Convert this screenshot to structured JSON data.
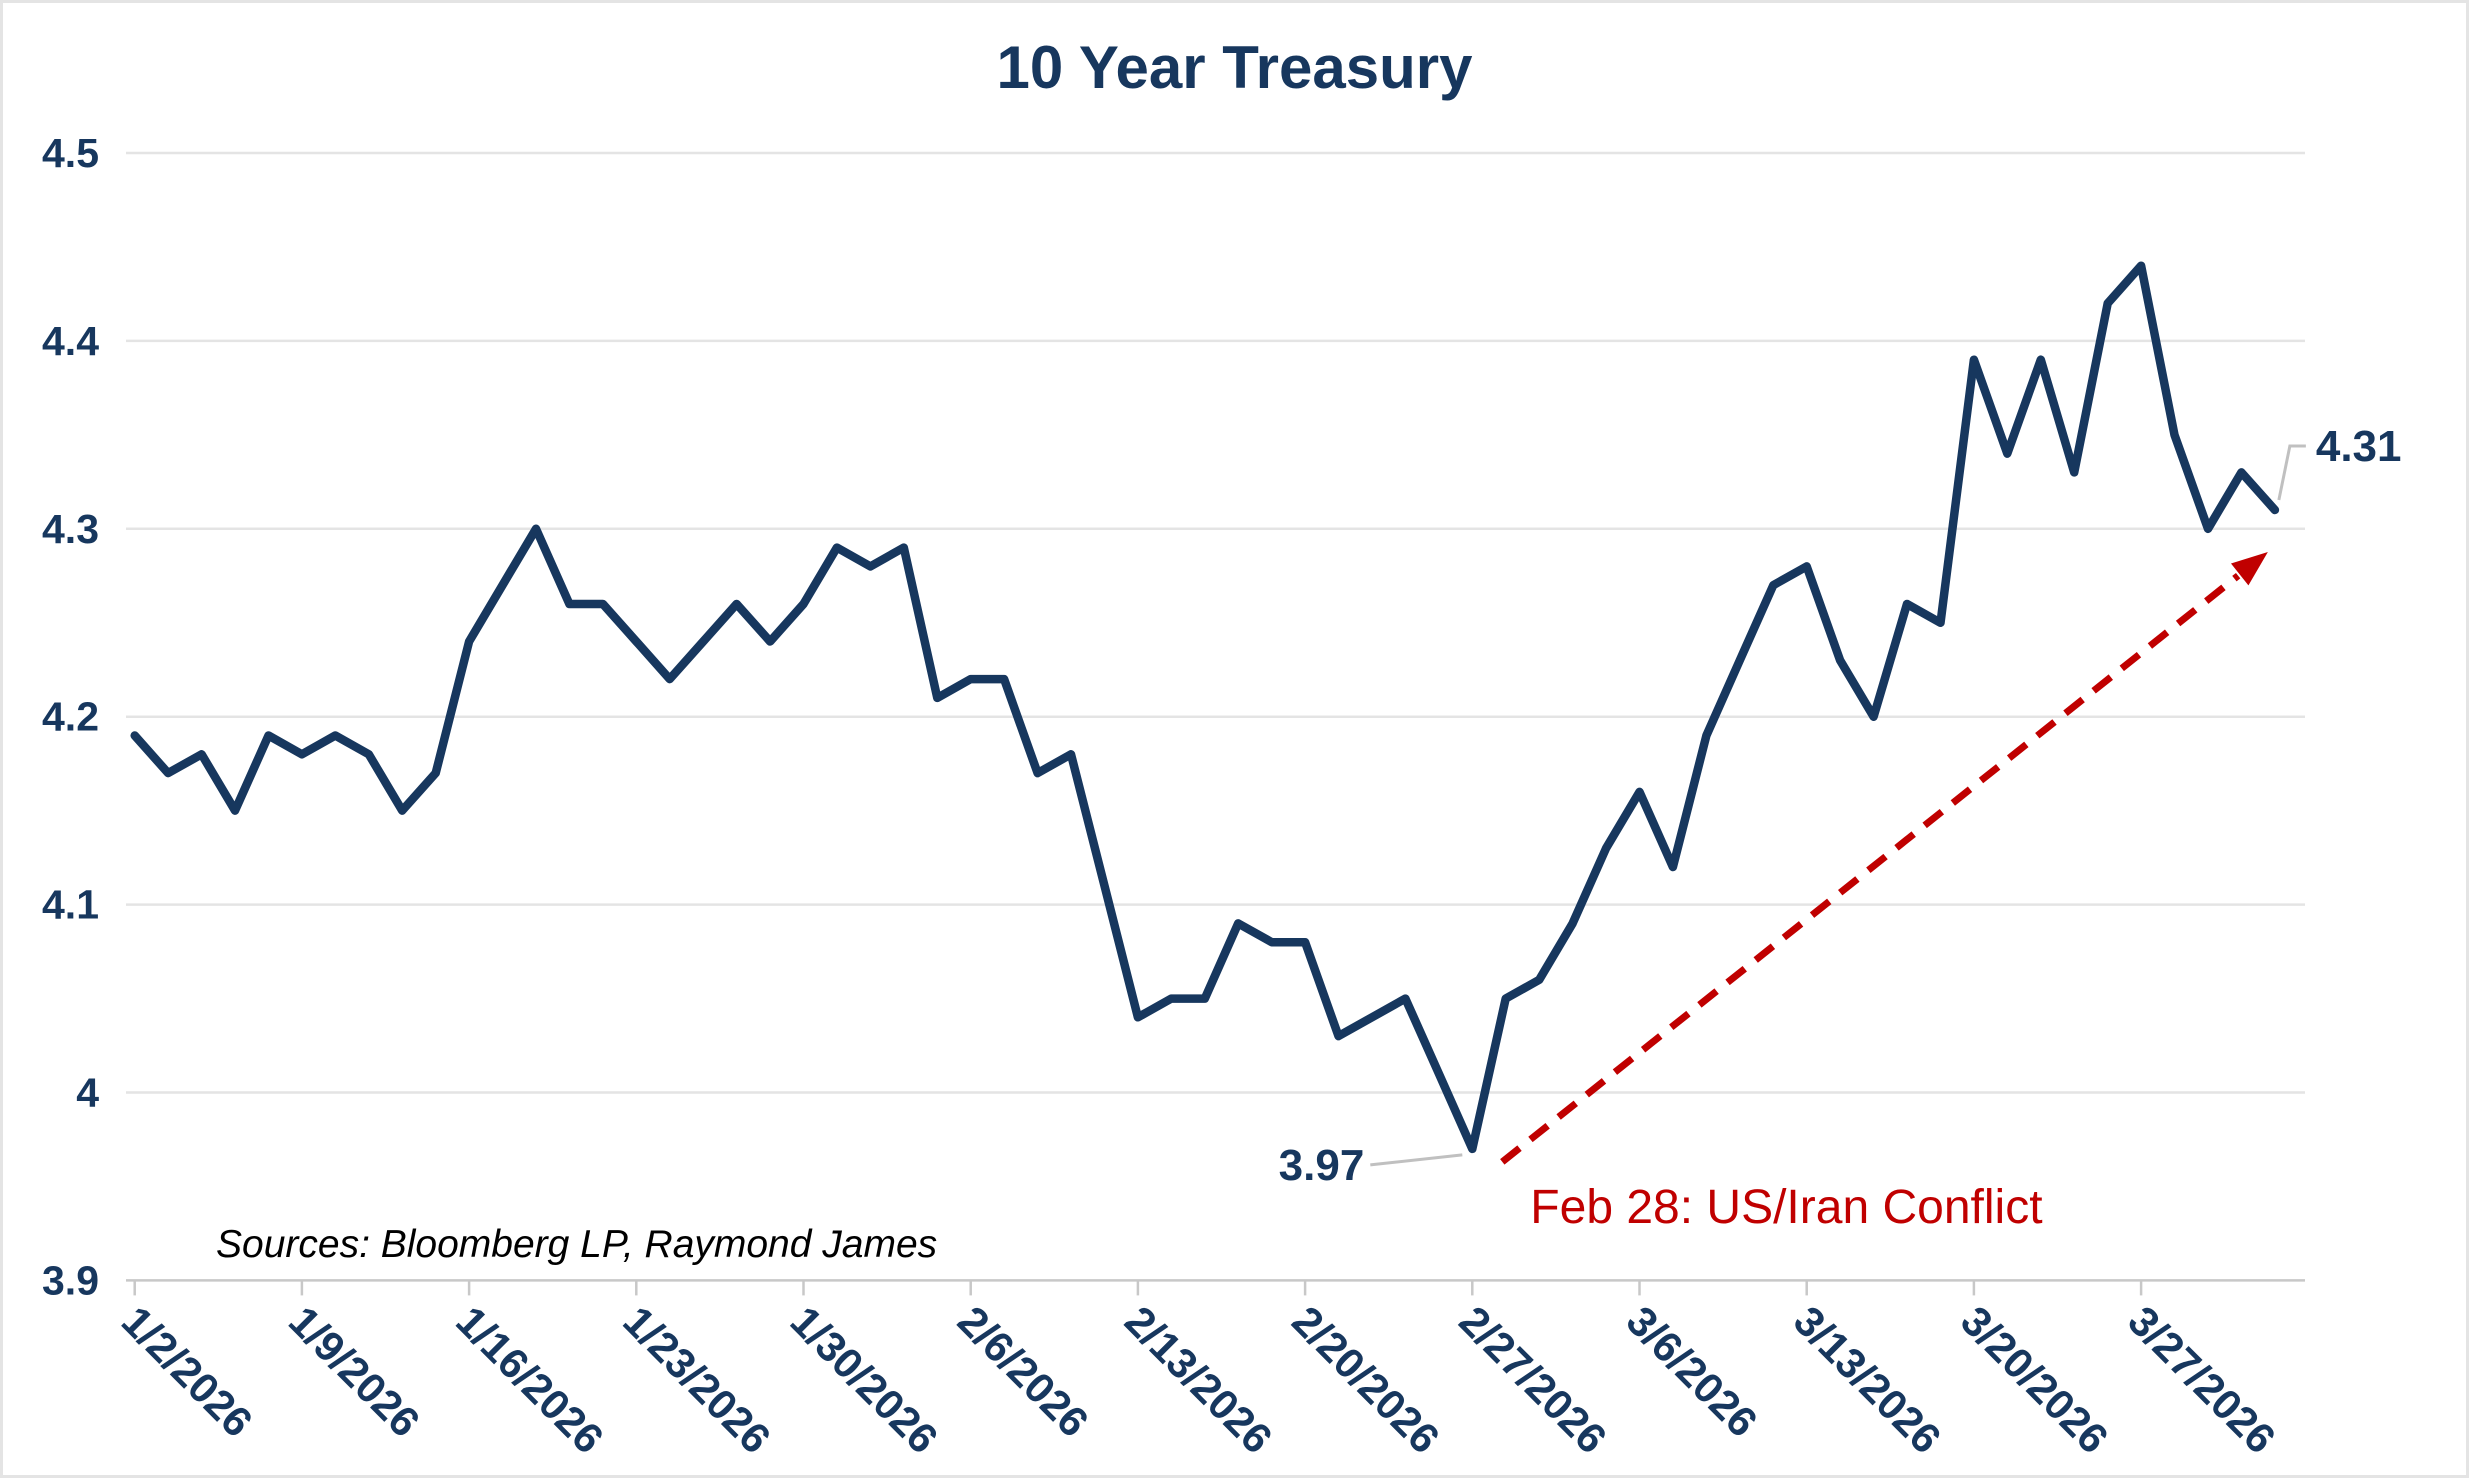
{
  "title": "10 Year Treasury",
  "source_note": "Sources: Bloomberg LP, Raymond James",
  "colors": {
    "line": "#17375E",
    "navy_text": "#17375E",
    "event_red": "#C00000",
    "gridline": "#E4E4E4",
    "axis_line": "#C8C8C8",
    "tick_mark": "#C8C8C8",
    "leader_line": "#C0C0C0",
    "source_text": "#000000",
    "background": "#FFFFFF",
    "page_border": "#E4E4E4"
  },
  "y_axis": {
    "min": 3.9,
    "max": 4.5,
    "tick_values": [
      4.5,
      4.4,
      4.3,
      4.2,
      4.1,
      4.0,
      3.9
    ],
    "tick_labels": [
      "4.5",
      "4.4",
      "4.3",
      "4.2",
      "4.1",
      "4",
      "3.9"
    ]
  },
  "x_axis": {
    "tick_indices": [
      0,
      5,
      10,
      15,
      20,
      25,
      30,
      35,
      40,
      45,
      50,
      55,
      60
    ],
    "tick_labels": [
      "1/2/2026",
      "1/9/2026",
      "1/16/2026",
      "1/23/2026",
      "1/30/2026",
      "2/6/2026",
      "2/13/2026",
      "2/20/2026",
      "2/27/2026",
      "3/6/2026",
      "3/13/2026",
      "3/20/2026",
      "3/27/2026"
    ]
  },
  "annotations": {
    "low_point": {
      "label": "3.97",
      "index": 40
    },
    "end_point": {
      "label": "4.31",
      "index": 64
    },
    "event": {
      "label": "Feb 28: US/Iran Conflict",
      "from_index": 40,
      "to_index": 64
    }
  },
  "chart_data": {
    "type": "line",
    "title": "10 Year Treasury",
    "series_name": "10 Year Treasury Yield (%)",
    "xlabel": "",
    "ylabel": "",
    "ylim": [
      3.9,
      4.5
    ],
    "grid": "horizontal",
    "legend": "none",
    "x": [
      "1/2/2026",
      "1/5/2026",
      "1/6/2026",
      "1/7/2026",
      "1/8/2026",
      "1/9/2026",
      "1/12/2026",
      "1/13/2026",
      "1/14/2026",
      "1/15/2026",
      "1/16/2026",
      "1/19/2026",
      "1/20/2026",
      "1/21/2026",
      "1/22/2026",
      "1/23/2026",
      "1/26/2026",
      "1/27/2026",
      "1/28/2026",
      "1/29/2026",
      "1/30/2026",
      "2/2/2026",
      "2/3/2026",
      "2/4/2026",
      "2/5/2026",
      "2/6/2026",
      "2/9/2026",
      "2/10/2026",
      "2/11/2026",
      "2/12/2026",
      "2/13/2026",
      "2/16/2026",
      "2/17/2026",
      "2/18/2026",
      "2/19/2026",
      "2/20/2026",
      "2/23/2026",
      "2/24/2026",
      "2/25/2026",
      "2/26/2026",
      "2/27/2026",
      "3/2/2026",
      "3/3/2026",
      "3/4/2026",
      "3/5/2026",
      "3/6/2026",
      "3/9/2026",
      "3/10/2026",
      "3/11/2026",
      "3/12/2026",
      "3/13/2026",
      "3/16/2026",
      "3/17/2026",
      "3/18/2026",
      "3/19/2026",
      "3/20/2026",
      "3/23/2026",
      "3/24/2026",
      "3/25/2026",
      "3/26/2026",
      "3/27/2026",
      "3/30/2026",
      "3/31/2026",
      "4/1/2026",
      "4/2/2026"
    ],
    "values": [
      4.19,
      4.17,
      4.18,
      4.15,
      4.19,
      4.18,
      4.19,
      4.18,
      4.15,
      4.17,
      4.24,
      4.27,
      4.3,
      4.26,
      4.26,
      4.24,
      4.22,
      4.24,
      4.26,
      4.24,
      4.26,
      4.29,
      4.28,
      4.29,
      4.21,
      4.22,
      4.22,
      4.17,
      4.18,
      4.11,
      4.04,
      4.05,
      4.05,
      4.09,
      4.08,
      4.08,
      4.03,
      4.04,
      4.05,
      4.01,
      3.97,
      4.05,
      4.06,
      4.09,
      4.13,
      4.16,
      4.12,
      4.19,
      4.23,
      4.27,
      4.28,
      4.23,
      4.2,
      4.26,
      4.25,
      4.39,
      4.34,
      4.39,
      4.33,
      4.42,
      4.44,
      4.35,
      4.3,
      4.33,
      4.31
    ]
  }
}
